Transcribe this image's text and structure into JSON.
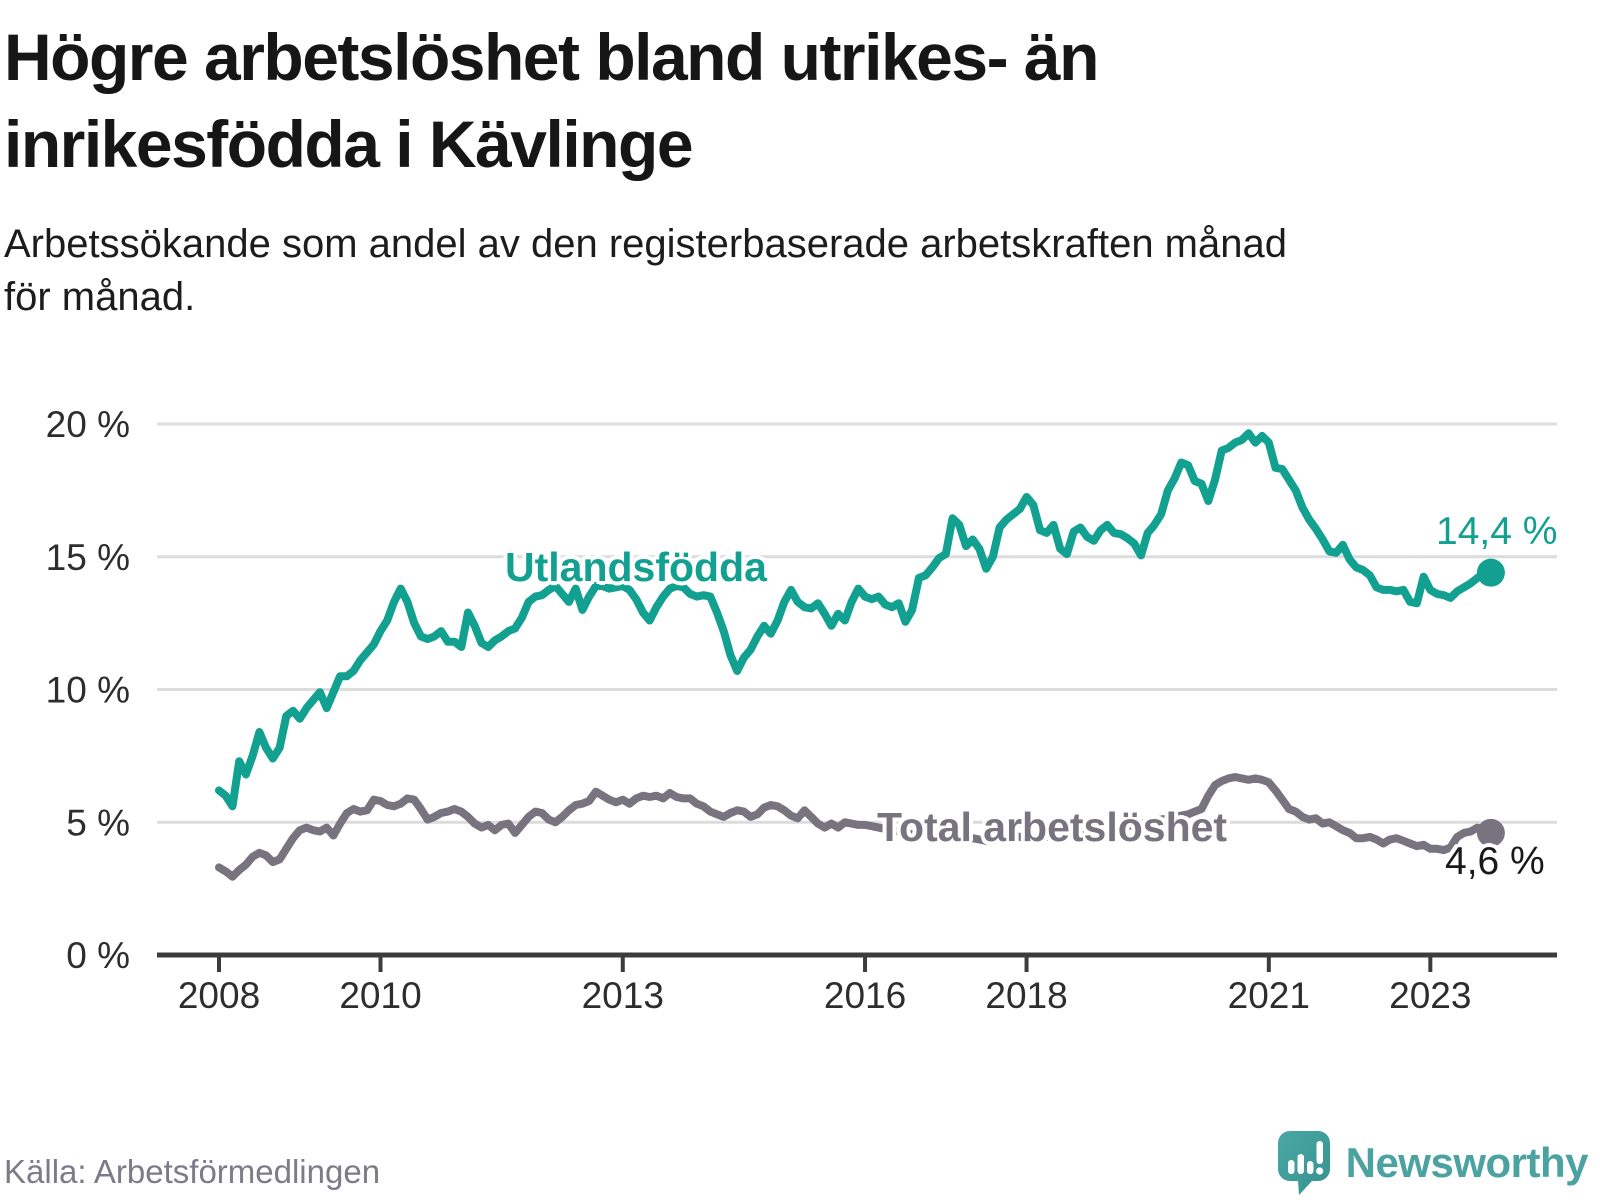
{
  "header": {
    "title": "Högre arbetslöshet bland utrikes- än inrikesfödda i Kävlinge",
    "subtitle": "Arbetssökande som andel av den registerbaserade arbetskraften månad för månad."
  },
  "footer": {
    "source": "Källa: Arbetsförmedlingen",
    "brand": "Newsworthy"
  },
  "colors": {
    "foreign_born_line": "#12a091",
    "total_line": "#77747f",
    "gridline": "#dcdcdc",
    "axis": "#3c3c3c",
    "tick_text": "#2d2d2d",
    "brand_teal": "#4ba2a1"
  },
  "chart_data": {
    "type": "line",
    "title": "Högre arbetslöshet bland utrikes- än inrikesfödda i Kävlinge",
    "subtitle": "Arbetssökande som andel av den registerbaserade arbetskraften månad för månad.",
    "frequency": "monthly",
    "start_period": "2008-01",
    "end_period": "2023-10",
    "ylim": [
      0,
      20
    ],
    "grid": true,
    "y_ticks": [
      {
        "label": "20 %",
        "value": 20
      },
      {
        "label": "15 %",
        "value": 15
      },
      {
        "label": "10 %",
        "value": 10
      },
      {
        "label": "5 %",
        "value": 5
      },
      {
        "label": "0 %",
        "value": 0
      }
    ],
    "x_ticks": [
      {
        "label": "2008",
        "year": 2008
      },
      {
        "label": "2010",
        "year": 2010
      },
      {
        "label": "2013",
        "year": 2013
      },
      {
        "label": "2016",
        "year": 2016
      },
      {
        "label": "2018",
        "year": 2018
      },
      {
        "label": "2021",
        "year": 2021
      },
      {
        "label": "2023",
        "year": 2023
      }
    ],
    "series": [
      {
        "name": "Utlandsfödda",
        "color": "#12a091",
        "end_label": "14,4 %",
        "end_value": 14.4,
        "values": [
          6.2,
          6.0,
          5.6,
          7.3,
          6.8,
          7.5,
          8.4,
          7.8,
          7.4,
          7.8,
          9.0,
          9.2,
          8.9,
          9.3,
          9.6,
          9.9,
          9.3,
          9.9,
          10.5,
          10.5,
          10.7,
          11.1,
          11.4,
          11.7,
          12.2,
          12.6,
          13.3,
          13.8,
          13.3,
          12.5,
          12.0,
          11.9,
          12.0,
          12.2,
          11.8,
          11.8,
          11.6,
          12.9,
          12.4,
          11.75,
          11.6,
          11.85,
          12.0,
          12.2,
          12.3,
          12.7,
          13.3,
          13.5,
          13.55,
          13.75,
          13.9,
          13.6,
          13.3,
          13.8,
          13.0,
          13.5,
          13.9,
          13.9,
          13.8,
          13.85,
          13.9,
          13.75,
          13.4,
          12.9,
          12.6,
          13.1,
          13.5,
          13.8,
          13.9,
          13.85,
          13.6,
          13.5,
          13.55,
          13.5,
          12.9,
          12.2,
          11.3,
          10.7,
          11.2,
          11.5,
          12.0,
          12.4,
          12.1,
          12.6,
          13.3,
          13.75,
          13.3,
          13.1,
          13.05,
          13.25,
          12.85,
          12.4,
          12.85,
          12.6,
          13.3,
          13.8,
          13.5,
          13.4,
          13.5,
          13.2,
          13.1,
          13.25,
          12.55,
          13.0,
          14.2,
          14.3,
          14.6,
          14.95,
          15.1,
          16.45,
          16.2,
          15.4,
          15.65,
          15.3,
          14.55,
          15.0,
          16.1,
          16.4,
          16.6,
          16.8,
          17.25,
          16.95,
          16.0,
          15.9,
          16.2,
          15.3,
          15.1,
          15.95,
          16.1,
          15.75,
          15.6,
          16.0,
          16.2,
          15.9,
          15.85,
          15.7,
          15.5,
          15.05,
          15.9,
          16.2,
          16.6,
          17.5,
          17.95,
          18.55,
          18.45,
          17.85,
          17.75,
          17.1,
          17.9,
          19.0,
          19.1,
          19.3,
          19.4,
          19.65,
          19.3,
          19.55,
          19.3,
          18.35,
          18.3,
          17.9,
          17.5,
          16.85,
          16.4,
          16.05,
          15.65,
          15.2,
          15.15,
          15.45,
          14.9,
          14.6,
          14.5,
          14.3,
          13.85,
          13.75,
          13.75,
          13.7,
          13.75,
          13.3,
          13.25,
          14.25,
          13.75,
          13.6,
          13.55,
          13.45,
          13.7,
          13.85,
          14.0,
          14.2,
          14.35,
          14.4
        ]
      },
      {
        "name": "Total arbetslöshet",
        "color": "#77747f",
        "end_label": "4,6 %",
        "end_value": 4.6,
        "values": [
          3.3,
          3.15,
          2.95,
          3.2,
          3.4,
          3.7,
          3.85,
          3.75,
          3.5,
          3.6,
          4.0,
          4.4,
          4.7,
          4.8,
          4.7,
          4.65,
          4.8,
          4.5,
          4.95,
          5.35,
          5.5,
          5.4,
          5.45,
          5.85,
          5.8,
          5.65,
          5.6,
          5.7,
          5.9,
          5.85,
          5.5,
          5.1,
          5.2,
          5.35,
          5.4,
          5.5,
          5.4,
          5.2,
          4.95,
          4.8,
          4.9,
          4.7,
          4.9,
          4.95,
          4.6,
          4.9,
          5.2,
          5.4,
          5.35,
          5.1,
          5.0,
          5.2,
          5.45,
          5.65,
          5.7,
          5.8,
          6.15,
          6.0,
          5.85,
          5.75,
          5.85,
          5.7,
          5.9,
          6.0,
          5.95,
          6.0,
          5.9,
          6.1,
          5.95,
          5.9,
          5.9,
          5.7,
          5.6,
          5.4,
          5.3,
          5.2,
          5.35,
          5.45,
          5.4,
          5.2,
          5.3,
          5.55,
          5.65,
          5.6,
          5.45,
          5.25,
          5.15,
          5.45,
          5.2,
          4.95,
          4.8,
          4.95,
          4.8,
          5.0,
          4.95,
          4.9,
          4.9,
          4.85,
          4.8,
          4.75,
          4.7,
          4.65,
          4.6,
          4.55,
          4.5,
          4.5,
          4.45,
          4.4,
          4.4,
          4.45,
          4.5,
          4.45,
          4.4,
          4.35,
          4.3,
          4.35,
          4.4,
          4.45,
          4.5,
          4.45,
          4.4,
          4.35,
          4.4,
          4.45,
          4.5,
          4.55,
          4.6,
          4.55,
          4.5,
          4.55,
          4.6,
          4.65,
          4.7,
          4.75,
          4.8,
          4.85,
          4.9,
          4.95,
          5.0,
          5.05,
          5.1,
          5.15,
          5.2,
          5.25,
          5.3,
          5.4,
          5.5,
          6.0,
          6.4,
          6.55,
          6.65,
          6.7,
          6.65,
          6.6,
          6.65,
          6.6,
          6.5,
          6.2,
          5.85,
          5.5,
          5.4,
          5.2,
          5.1,
          5.15,
          4.95,
          5.0,
          4.85,
          4.7,
          4.6,
          4.4,
          4.4,
          4.45,
          4.35,
          4.2,
          4.35,
          4.4,
          4.3,
          4.2,
          4.1,
          4.15,
          4.0,
          4.0,
          3.95,
          4.05,
          4.45,
          4.6,
          4.65,
          4.8,
          4.7,
          4.6
        ]
      }
    ]
  }
}
